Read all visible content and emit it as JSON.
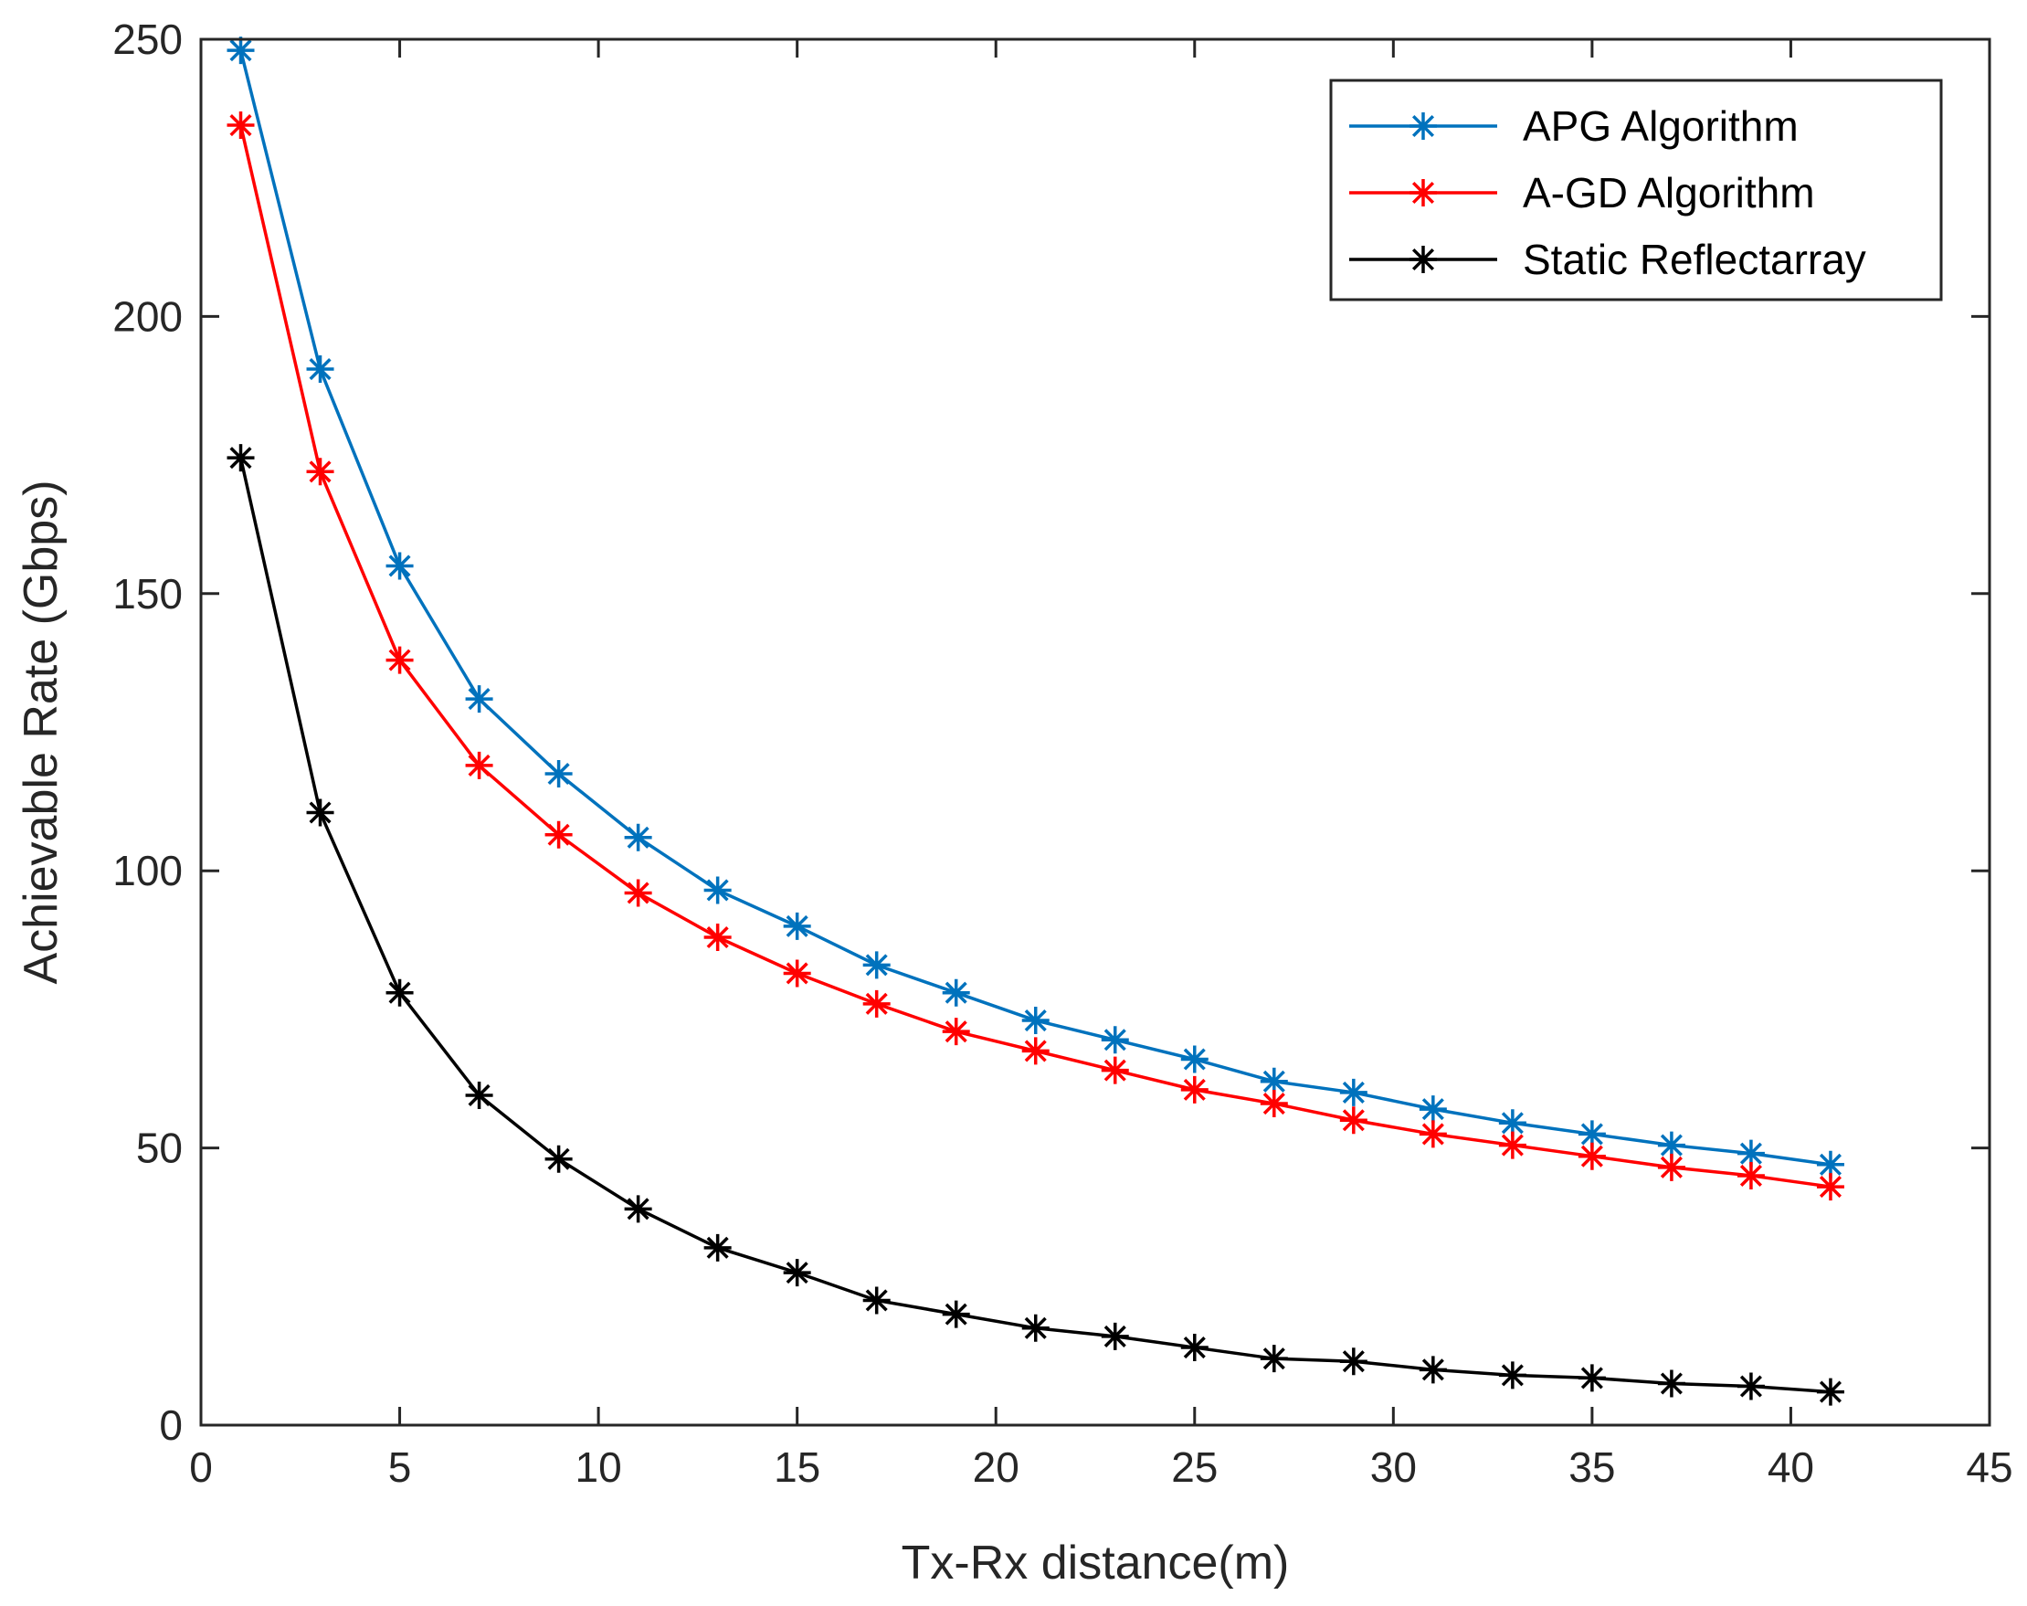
{
  "chart_data": {
    "type": "line",
    "title": "",
    "xlabel": "Tx-Rx distance(m)",
    "ylabel": "Achievable Rate (Gbps)",
    "xlim": [
      0,
      45
    ],
    "ylim": [
      0,
      250
    ],
    "xticks": [
      0,
      5,
      10,
      15,
      20,
      25,
      30,
      35,
      40,
      45
    ],
    "yticks": [
      0,
      50,
      100,
      150,
      200,
      250
    ],
    "grid": false,
    "legend_position": "top-right",
    "marker": "asterisk",
    "x": [
      1,
      3,
      5,
      7,
      9,
      11,
      13,
      15,
      17,
      19,
      21,
      23,
      25,
      27,
      29,
      31,
      33,
      35,
      37,
      39,
      41
    ],
    "series": [
      {
        "name": "APG Algorithm",
        "color": "#0072bd",
        "values": [
          248,
          190.5,
          155,
          131,
          117.5,
          106,
          96.5,
          90,
          83,
          78,
          73,
          69.5,
          66,
          62,
          60,
          57,
          54.5,
          52.5,
          50.5,
          49,
          47
        ]
      },
      {
        "name": "A-GD Algorithm",
        "color": "#ff0000",
        "values": [
          234.5,
          172,
          138,
          119,
          106.5,
          96,
          88,
          81.5,
          76,
          71,
          67.5,
          64,
          60.5,
          58,
          55,
          52.5,
          50.5,
          48.5,
          46.5,
          45,
          43
        ]
      },
      {
        "name": "Static Reflectarray",
        "color": "#000000",
        "values": [
          174.5,
          110.5,
          78,
          59.5,
          48,
          39,
          32,
          27.5,
          22.5,
          20,
          17.5,
          16,
          14,
          12,
          11.5,
          10,
          9,
          8.5,
          7.5,
          7,
          6
        ]
      }
    ]
  }
}
